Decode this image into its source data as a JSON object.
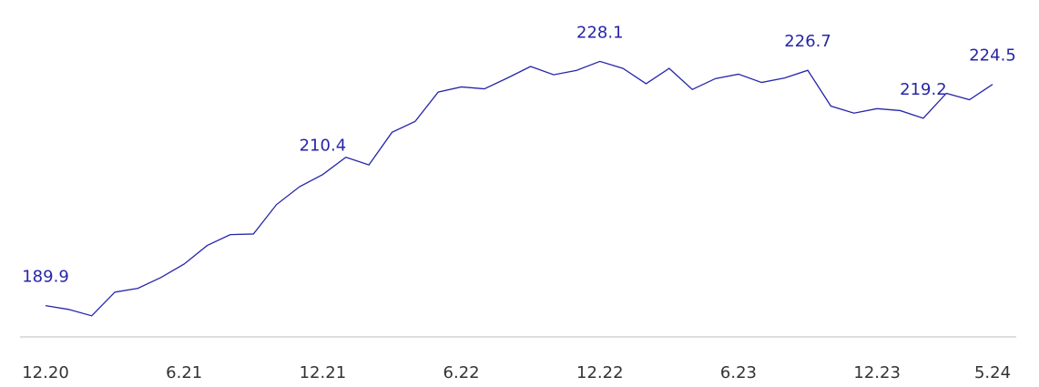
{
  "chart_data": {
    "type": "line",
    "categories": [
      "12.20",
      null,
      null,
      null,
      null,
      null,
      "6.21",
      null,
      null,
      null,
      null,
      null,
      "12.21",
      null,
      null,
      null,
      null,
      null,
      "6.22",
      null,
      null,
      null,
      null,
      null,
      "12.22",
      null,
      null,
      null,
      null,
      null,
      "6.23",
      null,
      null,
      null,
      null,
      null,
      "12.23",
      null,
      null,
      null,
      null,
      "5.24"
    ],
    "series": [
      {
        "color": "#2626a8",
        "values": [
          189.9,
          189.3,
          188.3,
          192.0,
          192.6,
          194.3,
          196.4,
          199.3,
          201.0,
          201.1,
          205.7,
          208.5,
          210.4,
          213.1,
          211.9,
          217.0,
          218.7,
          223.3,
          224.1,
          223.8,
          225.5,
          227.3,
          226.0,
          226.7,
          228.1,
          227.0,
          224.6,
          227.0,
          223.7,
          225.4,
          226.1,
          224.8,
          225.5,
          226.7,
          221.1,
          220.0,
          220.7,
          220.4,
          219.2,
          223.1,
          222.1,
          224.5
        ],
        "value_labels": [
          "189.9",
          null,
          null,
          null,
          null,
          null,
          null,
          null,
          null,
          null,
          null,
          null,
          "210.4",
          null,
          null,
          null,
          null,
          null,
          null,
          null,
          null,
          null,
          null,
          null,
          "228.1",
          null,
          null,
          null,
          null,
          null,
          null,
          null,
          null,
          "226.7",
          null,
          null,
          null,
          null,
          "219.2",
          null,
          null,
          "224.5"
        ]
      }
    ],
    "ylim": [
      185,
      232
    ]
  }
}
